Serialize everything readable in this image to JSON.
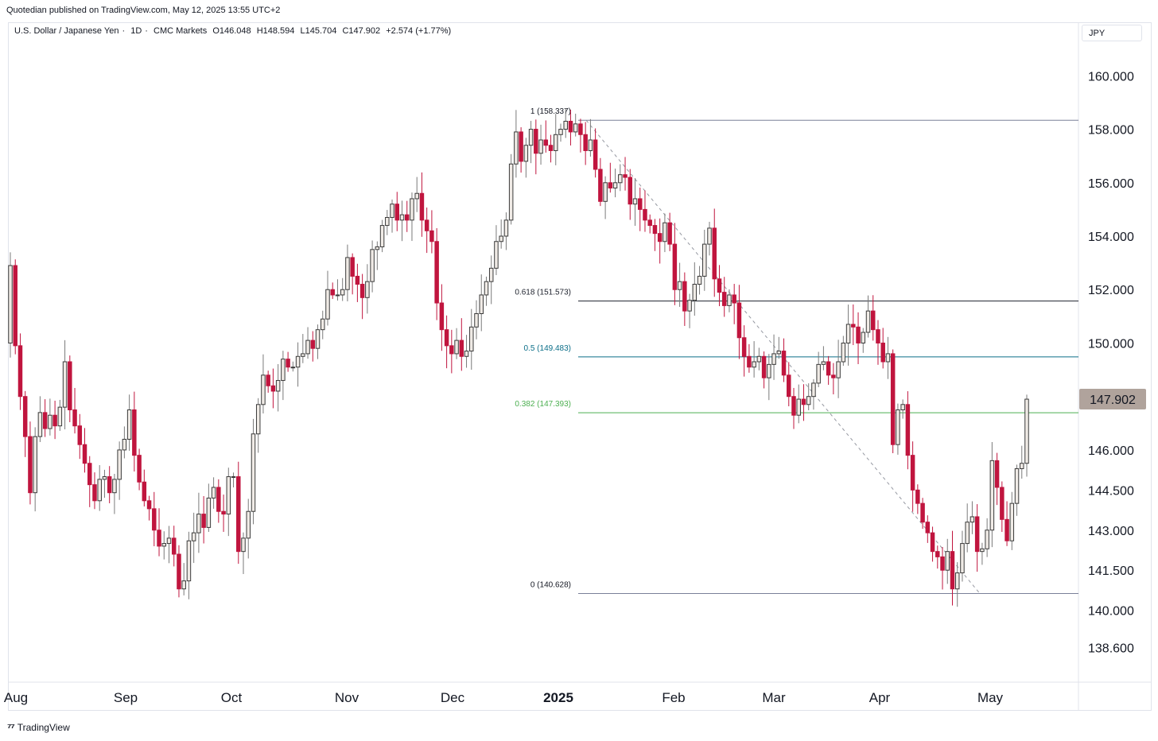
{
  "publisher": "Quotedian published on TradingView.com, May 12, 2025 13:55 UTC+2",
  "symbol": {
    "name": "U.S. Dollar / Japanese Yen",
    "interval": "1D",
    "exchange": "CMC Markets",
    "open": "O146.048",
    "high": "H148.594",
    "low": "L145.704",
    "close": "C147.902",
    "change": "+2.574 (+1.77%)"
  },
  "currency": "JPY",
  "footer_brand": "TradingView",
  "colors": {
    "up": "#f0ebe6",
    "down": "#c0153e",
    "wick_up": "#7a7a7a",
    "wick_down": "#c0153e",
    "fib_1": "#7a8099",
    "fib_0618": "#1e222d",
    "fib_05": "#0b6e88",
    "fib_0382": "#4caf50",
    "fib_0": "#7a8099",
    "last_price_bg": "#b0a39c",
    "trendline": "#9598a1"
  },
  "chart_data": {
    "type": "candlestick",
    "title": "U.S. Dollar / Japanese Yen · 1D · CMC Markets",
    "x_labels": [
      "Aug",
      "Sep",
      "Oct",
      "Nov",
      "Dec",
      "2025",
      "Feb",
      "Mar",
      "Apr",
      "May"
    ],
    "y_ticks": [
      "160.000",
      "158.000",
      "156.000",
      "154.000",
      "152.000",
      "150.000",
      "147.902",
      "146.000",
      "144.500",
      "143.000",
      "141.500",
      "140.000",
      "138.600"
    ],
    "y_tick_values": [
      160.0,
      158.0,
      156.0,
      154.0,
      152.0,
      150.0,
      146.0,
      144.5,
      143.0,
      141.5,
      140.0,
      138.6
    ],
    "ylim": [
      137.4,
      161.2
    ],
    "last_price": 147.902,
    "last_price_label": "147.902",
    "fibonacci": [
      {
        "level": "1",
        "price": 158.337,
        "label": "1 (158.337)"
      },
      {
        "level": "0.618",
        "price": 151.573,
        "label": "0.618 (151.573)"
      },
      {
        "level": "0.5",
        "price": 149.483,
        "label": "0.5 (149.483)"
      },
      {
        "level": "0.382",
        "price": 147.393,
        "label": "0.382 (147.393)"
      },
      {
        "level": "0",
        "price": 140.628,
        "label": "0 (140.628)"
      }
    ],
    "series": [
      {
        "name": "USDJPY",
        "close": [
          152.9,
          149.9,
          148.0,
          146.5,
          144.4,
          146.5,
          147.4,
          146.8,
          147.3,
          146.9,
          147.6,
          149.3,
          147.5,
          146.9,
          146.2,
          145.5,
          144.7,
          144.1,
          144.9,
          145.0,
          144.4,
          144.9,
          146.0,
          146.4,
          147.5,
          145.8,
          144.8,
          144.1,
          143.8,
          143.0,
          142.4,
          142.5,
          142.7,
          142.1,
          140.8,
          141.1,
          142.6,
          142.9,
          143.6,
          143.1,
          144.2,
          144.6,
          143.7,
          143.6,
          145.0,
          145.0,
          142.2,
          142.7,
          143.7,
          146.6,
          147.7,
          148.8,
          148.4,
          148.2,
          148.6,
          149.4,
          149.1,
          149.1,
          149.5,
          149.6,
          150.1,
          149.8,
          150.5,
          150.9,
          152.0,
          151.8,
          151.8,
          152.0,
          153.2,
          152.5,
          152.2,
          151.7,
          152.3,
          153.5,
          153.6,
          154.4,
          154.7,
          155.2,
          154.6,
          154.8,
          154.6,
          155.4,
          155.6,
          154.6,
          154.2,
          153.8,
          151.5,
          150.5,
          149.9,
          149.6,
          150.1,
          149.5,
          149.7,
          150.6,
          151.1,
          151.8,
          152.3,
          152.8,
          153.8,
          154.0,
          154.6,
          156.7,
          157.9,
          156.8,
          157.4,
          158.0,
          157.1,
          157.6,
          157.4,
          157.2,
          157.8,
          158.0,
          158.3,
          157.9,
          158.2,
          157.8,
          157.2,
          157.6,
          156.5,
          155.3,
          156.0,
          155.8,
          156.0,
          156.3,
          156.2,
          155.2,
          155.4,
          155.0,
          154.6,
          154.4,
          154.1,
          153.8,
          154.5,
          153.7,
          152.0,
          152.3,
          151.2,
          151.6,
          152.2,
          152.5,
          153.7,
          154.3,
          152.4,
          151.9,
          151.4,
          151.8,
          151.5,
          150.2,
          149.5,
          149.1,
          149.3,
          149.5,
          148.7,
          149.2,
          149.6,
          149.7,
          148.8,
          148.0,
          147.3,
          147.9,
          147.7,
          148.0,
          148.5,
          149.2,
          149.3,
          148.8,
          148.7,
          149.3,
          150.0,
          150.7,
          150.6,
          150.0,
          150.4,
          151.2,
          150.5,
          150.0,
          149.3,
          149.6,
          146.2,
          147.5,
          147.7,
          145.8,
          144.5,
          144.0,
          143.3,
          142.9,
          142.2,
          142.0,
          141.5,
          142.2,
          140.8,
          141.4,
          142.5,
          143.3,
          143.5,
          142.2,
          142.3,
          143.0,
          145.6,
          144.6,
          143.4,
          142.6,
          144.0,
          145.3,
          145.5,
          147.9
        ]
      }
    ]
  }
}
